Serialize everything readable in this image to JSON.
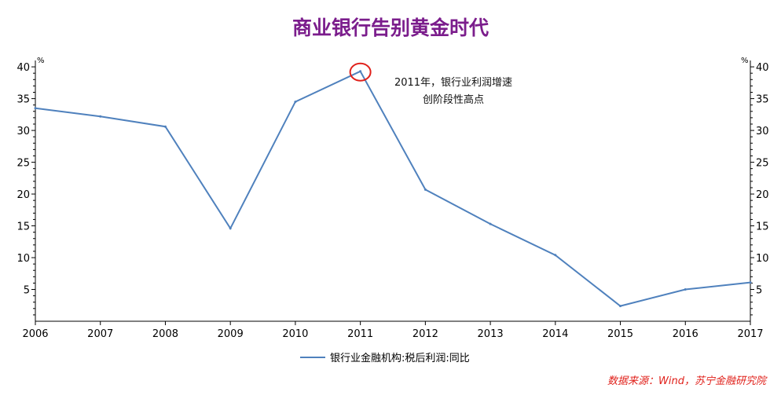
{
  "colors": {
    "title": "#7b1d8c",
    "series": "#4f81bd",
    "annotation_circle": "#e0201a",
    "source": "#e0201a"
  },
  "chart_data": {
    "type": "line",
    "title": "商业银行告别黄金时代",
    "x": [
      "2006",
      "2007",
      "2008",
      "2009",
      "2010",
      "2011",
      "2012",
      "2013",
      "2014",
      "2015",
      "2016",
      "2017"
    ],
    "series": [
      {
        "name": "银行业金融机构:税后利润:同比",
        "values": [
          33.5,
          32.2,
          30.6,
          14.6,
          34.5,
          39.3,
          20.7,
          15.3,
          10.4,
          2.4,
          5.0,
          6.1
        ]
      }
    ],
    "y_left": {
      "unit": "%",
      "ylim": [
        0,
        40
      ],
      "ticks": [
        5,
        10,
        15,
        20,
        25,
        30,
        35,
        40
      ]
    },
    "y_right": {
      "unit": "%",
      "ylim": [
        0,
        40
      ],
      "ticks": [
        5,
        10,
        15,
        20,
        25,
        30,
        35,
        40
      ]
    },
    "grid": false,
    "legend_position": "bottom-center",
    "annotation": {
      "x": "2011",
      "lines": [
        "2011年，银行业利润增速",
        "创阶段性高点"
      ]
    },
    "source": "数据来源：Wind，苏宁金融研究院"
  }
}
